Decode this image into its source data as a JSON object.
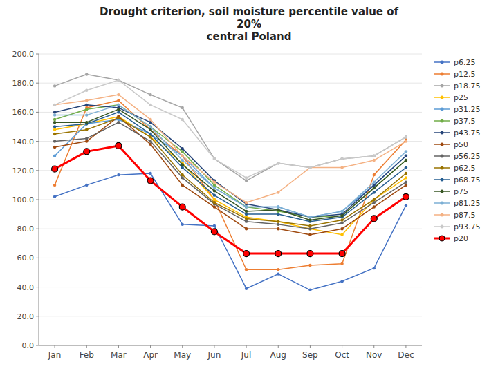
{
  "chart_data": {
    "type": "line",
    "title": "Drought criterion, soil moisture percentile value of\n20%\ncentral Poland",
    "categories": [
      "Jan",
      "Feb",
      "Mar",
      "Apr",
      "May",
      "Jun",
      "Jul",
      "Aug",
      "Sep",
      "Oct",
      "Nov",
      "Dec"
    ],
    "ylim": [
      0,
      200
    ],
    "yticks": [
      {
        "value": 0,
        "label": "0.0"
      },
      {
        "value": 20,
        "label": "20.0"
      },
      {
        "value": 40,
        "label": "40.0"
      },
      {
        "value": 60,
        "label": "60.0"
      },
      {
        "value": 80,
        "label": "80.0"
      },
      {
        "value": 100,
        "label": "100.0"
      },
      {
        "value": 120,
        "label": "120.0"
      },
      {
        "value": 140,
        "label": "140.0"
      },
      {
        "value": 160,
        "label": "160.0"
      },
      {
        "value": 180,
        "label": "180.0"
      },
      {
        "value": 200,
        "label": "200.0"
      }
    ],
    "grid": true,
    "legend": "right",
    "marker": "circle",
    "series": [
      {
        "name": "p6.25",
        "color": "#4472c4",
        "values": [
          102,
          110,
          117,
          118,
          83,
          82,
          39,
          49,
          38,
          44,
          53,
          96
        ]
      },
      {
        "name": "p12.5",
        "color": "#ed7d31",
        "values": [
          110,
          163,
          168,
          148,
          130,
          100,
          52,
          52,
          55,
          56,
          117,
          141
        ]
      },
      {
        "name": "p18.75",
        "color": "#a5a5a5",
        "values": [
          178,
          186,
          182,
          172,
          163,
          128,
          113,
          125,
          122,
          128,
          130,
          143
        ]
      },
      {
        "name": "p25",
        "color": "#ffc000",
        "values": [
          148,
          152,
          157,
          143,
          125,
          100,
          88,
          85,
          80,
          76,
          100,
          115
        ]
      },
      {
        "name": "p31.25",
        "color": "#5b9bd5",
        "values": [
          130,
          152,
          155,
          145,
          130,
          108,
          95,
          95,
          88,
          92,
          110,
          130
        ]
      },
      {
        "name": "p37.5",
        "color": "#70ad47",
        "values": [
          155,
          162,
          165,
          150,
          133,
          110,
          95,
          92,
          88,
          89,
          108,
          127
        ]
      },
      {
        "name": "p43.75",
        "color": "#264478",
        "values": [
          160,
          165,
          163,
          153,
          135,
          113,
          97,
          93,
          88,
          90,
          110,
          130
        ]
      },
      {
        "name": "p50",
        "color": "#9e480e",
        "values": [
          136,
          140,
          157,
          138,
          110,
          95,
          80,
          80,
          76,
          80,
          95,
          110
        ]
      },
      {
        "name": "p56.25",
        "color": "#636363",
        "values": [
          140,
          142,
          153,
          140,
          115,
          97,
          85,
          83,
          80,
          84,
          98,
          112
        ]
      },
      {
        "name": "p62.5",
        "color": "#997300",
        "values": [
          145,
          148,
          156,
          143,
          117,
          98,
          87,
          85,
          82,
          86,
          100,
          118
        ]
      },
      {
        "name": "p68.75",
        "color": "#255e91",
        "values": [
          150,
          152,
          160,
          145,
          122,
          103,
          90,
          90,
          85,
          88,
          105,
          122
        ]
      },
      {
        "name": "p75",
        "color": "#375623",
        "values": [
          153,
          153,
          162,
          148,
          124,
          106,
          92,
          93,
          86,
          89,
          108,
          127
        ]
      },
      {
        "name": "p81.25",
        "color": "#7cafd4",
        "values": [
          158,
          158,
          165,
          150,
          127,
          108,
          95,
          95,
          88,
          92,
          112,
          133
        ]
      },
      {
        "name": "p87.5",
        "color": "#f4b183",
        "values": [
          165,
          168,
          172,
          155,
          130,
          112,
          98,
          105,
          122,
          122,
          127,
          140
        ]
      },
      {
        "name": "p93.75",
        "color": "#c9c9c9",
        "values": [
          165,
          175,
          182,
          165,
          155,
          128,
          115,
          125,
          122,
          128,
          130,
          143
        ]
      },
      {
        "name": "p20",
        "color": "#ff0000",
        "line_style": "bold",
        "values": [
          121,
          133,
          137,
          113,
          95,
          78,
          63,
          63,
          63,
          63,
          87,
          102
        ]
      }
    ]
  }
}
